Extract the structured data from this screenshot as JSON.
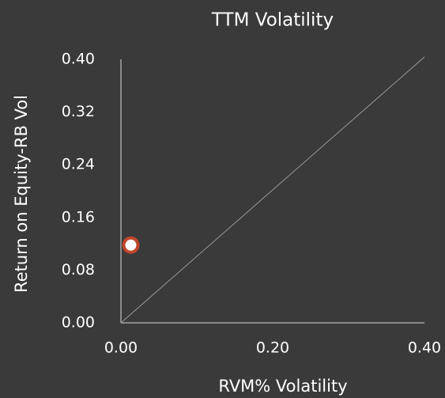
{
  "chart_data": {
    "type": "scatter",
    "title": "TTM Volatility",
    "x_label": "RVM% Volatility",
    "y_label": "Return on Equity-RB Vol",
    "x": [
      0.013
    ],
    "values": [
      0.118
    ],
    "color": "#ffffff",
    "edge_color": "#c0462a",
    "xlim": [
      0,
      0.4
    ],
    "ylim": [
      0,
      0.4
    ],
    "xticks": [
      {
        "value": 0,
        "label": "0.00"
      },
      {
        "value": 0.2,
        "label": "0.20"
      },
      {
        "value": 0.4,
        "label": "0.40"
      }
    ],
    "yticks": [
      {
        "value": 0,
        "label": "0.00"
      },
      {
        "value": 0.08,
        "label": "0.08"
      },
      {
        "value": 0.16,
        "label": "0.16"
      },
      {
        "value": 0.24,
        "label": "0.24"
      },
      {
        "value": 0.32,
        "label": "0.32"
      },
      {
        "value": 0.4,
        "label": "0.40"
      }
    ],
    "grid": false
  }
}
